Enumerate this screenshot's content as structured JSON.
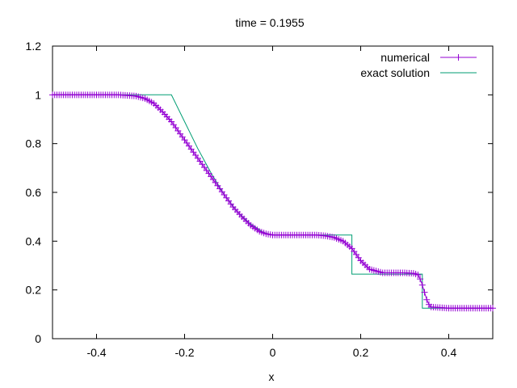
{
  "chart_data": {
    "type": "line",
    "title": "time = 0.1955",
    "xlabel": "x",
    "ylabel": "",
    "xlim": [
      -0.5,
      0.5
    ],
    "ylim": [
      0,
      1.2
    ],
    "xticks": [
      -0.4,
      -0.2,
      0,
      0.2,
      0.4
    ],
    "yticks": [
      0,
      0.2,
      0.4,
      0.6,
      0.8,
      1,
      1.2
    ],
    "xtick_labels": [
      "-0.4",
      "-0.2",
      "0",
      "0.2",
      "0.4"
    ],
    "ytick_labels": [
      "0",
      "0.2",
      "0.4",
      "0.6",
      "0.8",
      "1",
      "1.2"
    ],
    "grid": false,
    "legend_position": "top-right",
    "series": [
      {
        "name": "numerical",
        "color": "#9400d3",
        "marker": "plus",
        "x": [
          -0.5,
          -0.45,
          -0.4,
          -0.35,
          -0.31,
          -0.29,
          -0.27,
          -0.25,
          -0.23,
          -0.21,
          -0.19,
          -0.17,
          -0.15,
          -0.13,
          -0.11,
          -0.09,
          -0.07,
          -0.05,
          -0.03,
          -0.015,
          0,
          0.05,
          0.1,
          0.12,
          0.14,
          0.16,
          0.18,
          0.2,
          0.22,
          0.25,
          0.3,
          0.32,
          0.33,
          0.335,
          0.34,
          0.345,
          0.35,
          0.355,
          0.36,
          0.4,
          0.45,
          0.5
        ],
        "y": [
          1.0,
          1.0,
          1.0,
          1.0,
          0.995,
          0.985,
          0.965,
          0.93,
          0.89,
          0.84,
          0.79,
          0.74,
          0.69,
          0.64,
          0.59,
          0.54,
          0.5,
          0.465,
          0.44,
          0.43,
          0.425,
          0.425,
          0.425,
          0.422,
          0.415,
          0.4,
          0.37,
          0.32,
          0.285,
          0.27,
          0.27,
          0.268,
          0.262,
          0.245,
          0.22,
          0.19,
          0.16,
          0.14,
          0.13,
          0.125,
          0.125,
          0.125
        ]
      },
      {
        "name": "exact solution",
        "color": "#009e73",
        "marker": "none",
        "x": [
          -0.5,
          -0.23,
          -0.2,
          -0.17,
          -0.14,
          -0.11,
          -0.08,
          -0.05,
          -0.02,
          0,
          0.18,
          0.18,
          0.34,
          0.34,
          0.5
        ],
        "y": [
          1.0,
          1.0,
          0.89,
          0.78,
          0.68,
          0.59,
          0.52,
          0.47,
          0.435,
          0.425,
          0.425,
          0.265,
          0.265,
          0.125,
          0.125
        ]
      }
    ]
  }
}
